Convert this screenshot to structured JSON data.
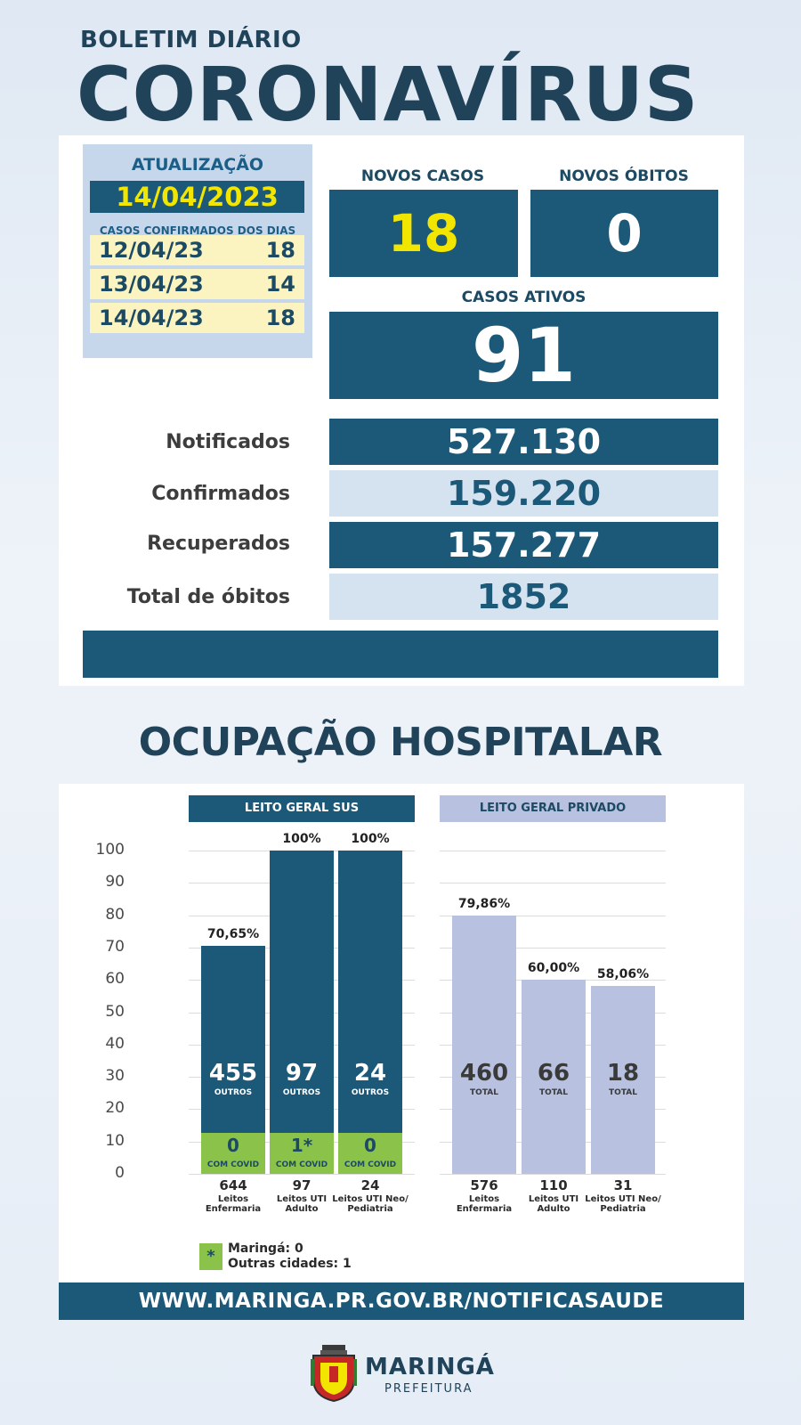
{
  "header": {
    "subtitle": "BOLETIM DIÁRIO",
    "title": "CORONAVÍRUS"
  },
  "update": {
    "label": "ATUALIZAÇÃO",
    "date": "14/04/2023",
    "cases_label": "CASOS CONFIRMADOS DOS DIAS",
    "days": [
      {
        "date": "12/04/23",
        "value": "18"
      },
      {
        "date": "13/04/23",
        "value": "14"
      },
      {
        "date": "14/04/23",
        "value": "18"
      }
    ]
  },
  "kpis": {
    "new_cases_label": "NOVOS CASOS",
    "new_cases": "18",
    "new_deaths_label": "NOVOS ÓBITOS",
    "new_deaths": "0",
    "active_label": "CASOS ATIVOS",
    "active": "91"
  },
  "stats": [
    {
      "label": "Notificados",
      "value": "527.130"
    },
    {
      "label": "Confirmados",
      "value": "159.220"
    },
    {
      "label": "Recuperados",
      "value": "157.277"
    },
    {
      "label": "Total de óbitos",
      "value": "1852"
    }
  ],
  "hospital": {
    "title": "OCUPAÇÃO HOSPITALAR",
    "sus_label": "LEITO GERAL SUS",
    "priv_label": "LEITO GERAL PRIVADO",
    "legend_symbol": "*",
    "legend_lines": [
      "Maringá: 0",
      "Outras cidades: 1"
    ]
  },
  "chart_data": {
    "type": "bar",
    "ylim": [
      0,
      100
    ],
    "yticks": [
      "100",
      "90",
      "80",
      "70",
      "60",
      "50",
      "40",
      "30",
      "20",
      "10",
      "0"
    ],
    "grid": true,
    "groups": [
      {
        "name": "LEITO GERAL SUS",
        "bars": [
          {
            "pct_label": "70,65%",
            "value": 70.65,
            "others": "455",
            "others_label": "OUTROS",
            "covid": "0",
            "covid_label": "COM COVID",
            "beds": "644",
            "category": "Leitos Enfermaria"
          },
          {
            "pct_label": "100%",
            "value": 100,
            "others": "97",
            "others_label": "OUTROS",
            "covid": "1*",
            "covid_label": "COM COVID",
            "beds": "97",
            "category": "Leitos UTI Adulto"
          },
          {
            "pct_label": "100%",
            "value": 100,
            "others": "24",
            "others_label": "OUTROS",
            "covid": "0",
            "covid_label": "COM COVID",
            "beds": "24",
            "category": "Leitos UTI Neo/ Pediatria"
          }
        ]
      },
      {
        "name": "LEITO GERAL PRIVADO",
        "bars": [
          {
            "pct_label": "79,86%",
            "value": 79.86,
            "total": "460",
            "total_label": "TOTAL",
            "beds": "576",
            "category": "Leitos Enfermaria"
          },
          {
            "pct_label": "60,00%",
            "value": 60.0,
            "total": "66",
            "total_label": "TOTAL",
            "beds": "110",
            "category": "Leitos UTI Adulto"
          },
          {
            "pct_label": "58,06%",
            "value": 58.06,
            "total": "18",
            "total_label": "TOTAL",
            "beds": "31",
            "category": "Leitos UTI Neo/ Pediatria"
          }
        ]
      }
    ]
  },
  "footer": {
    "url": "WWW.MARINGA.PR.GOV.BR/NOTIFICASAUDE",
    "logo_name": "MARINGÁ",
    "logo_sub": "PREFEITURA"
  },
  "colors": {
    "primary": "#1c5878",
    "accent_yellow": "#f2e600",
    "covid_green": "#8bc34a",
    "private_lavender": "#b8c1e0",
    "light_blue": "#d5e3f1"
  }
}
